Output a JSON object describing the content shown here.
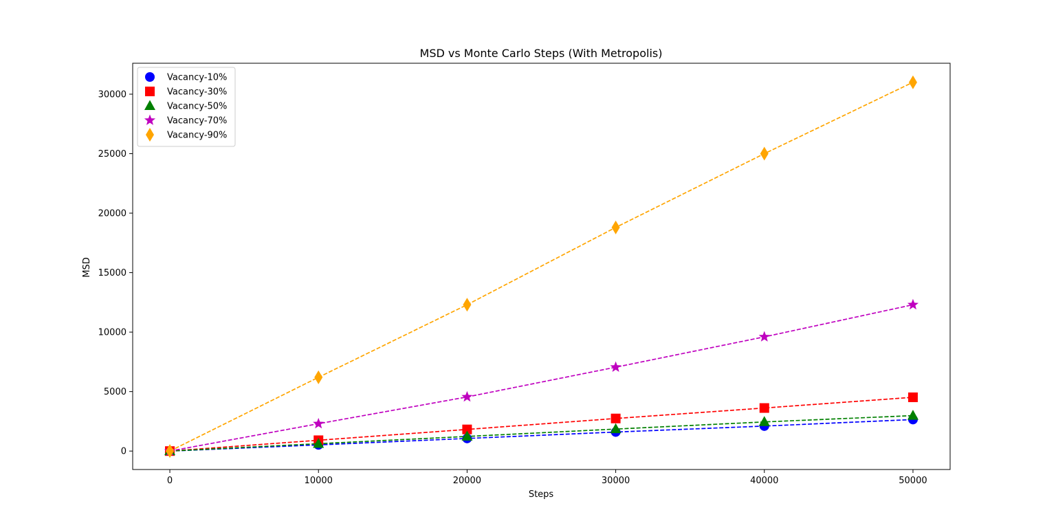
{
  "chart_data": {
    "type": "line",
    "title": "MSD vs Monte Carlo Steps (With Metropolis)",
    "xlabel": "Steps",
    "ylabel": "MSD",
    "xlim": [
      -2500,
      52500
    ],
    "ylim": [
      -1550,
      32600
    ],
    "xticks": [
      0,
      10000,
      20000,
      30000,
      40000,
      50000
    ],
    "yticks": [
      0,
      5000,
      10000,
      15000,
      20000,
      25000,
      30000
    ],
    "grid": false,
    "legend_position": "top-left",
    "x": [
      0,
      10000,
      20000,
      30000,
      40000,
      50000
    ],
    "series": [
      {
        "name": "Vacancy-10%",
        "color": "#0000ff",
        "marker": "circle",
        "values": [
          0,
          520,
          1060,
          1600,
          2100,
          2650
        ]
      },
      {
        "name": "Vacancy-30%",
        "color": "#ff0000",
        "marker": "square",
        "values": [
          0,
          910,
          1820,
          2740,
          3620,
          4520
        ]
      },
      {
        "name": "Vacancy-50%",
        "color": "#008000",
        "marker": "triangle",
        "values": [
          0,
          620,
          1230,
          1850,
          2450,
          2980
        ]
      },
      {
        "name": "Vacancy-70%",
        "color": "#bf00bf",
        "marker": "star",
        "values": [
          0,
          2300,
          4550,
          7050,
          9600,
          12300
        ]
      },
      {
        "name": "Vacancy-90%",
        "color": "#ffa500",
        "marker": "diamond",
        "values": [
          0,
          6200,
          12300,
          18800,
          25000,
          31000
        ]
      }
    ]
  }
}
